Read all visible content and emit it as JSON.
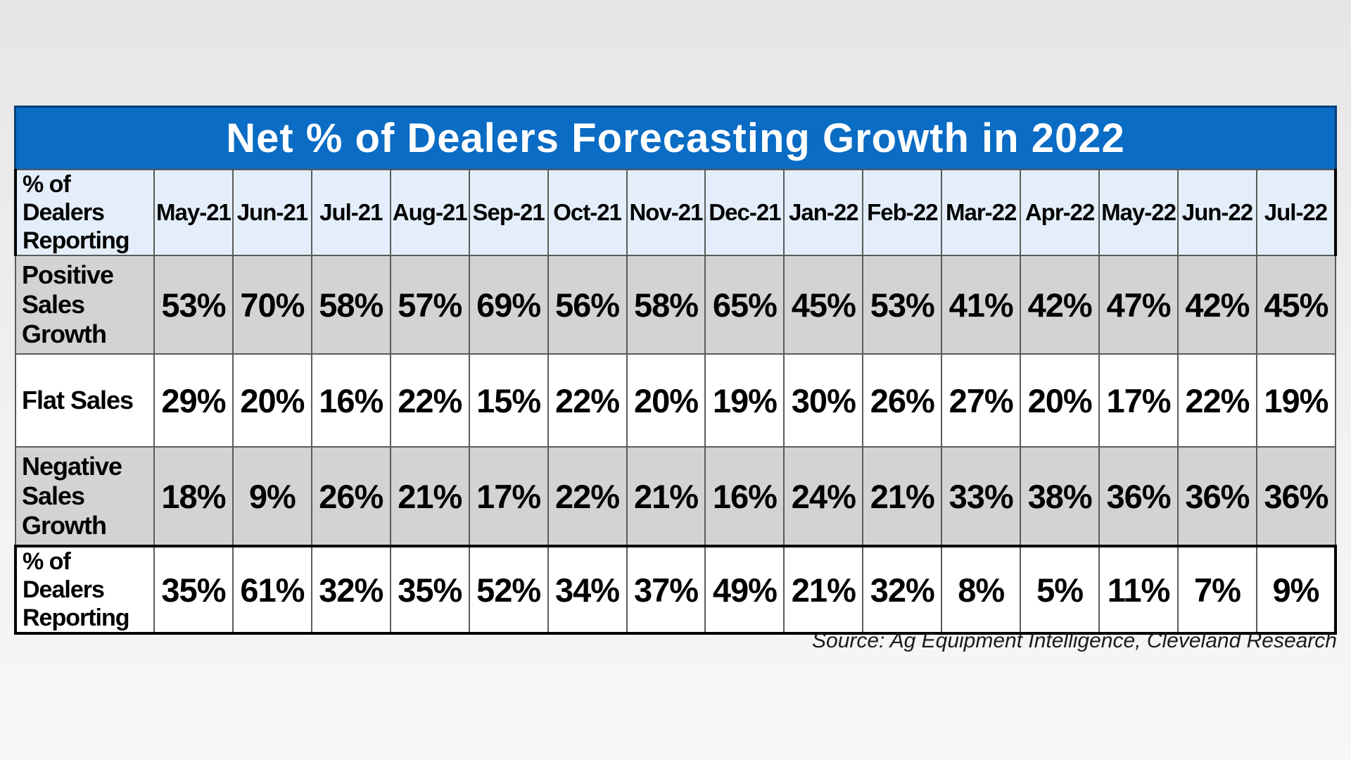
{
  "chart_data": {
    "type": "table",
    "title": "Net % of Dealers Forecasting Growth in 2022",
    "header_label": "% of Dealers Reporting",
    "columns": [
      "May-21",
      "Jun-21",
      "Jul-21",
      "Aug-21",
      "Sep-21",
      "Oct-21",
      "Nov-21",
      "Dec-21",
      "Jan-22",
      "Feb-22",
      "Mar-22",
      "Apr-22",
      "May-22",
      "Jun-22",
      "Jul-22"
    ],
    "rows": [
      {
        "label": "Positive Sales Growth",
        "style": "gray",
        "cls": "r-pos",
        "values": [
          "53%",
          "70%",
          "58%",
          "57%",
          "69%",
          "56%",
          "58%",
          "65%",
          "45%",
          "53%",
          "41%",
          "42%",
          "47%",
          "42%",
          "45%"
        ]
      },
      {
        "label": "Flat Sales",
        "style": "white",
        "cls": "r-flat",
        "values": [
          "29%",
          "20%",
          "16%",
          "22%",
          "15%",
          "22%",
          "20%",
          "19%",
          "30%",
          "26%",
          "27%",
          "20%",
          "17%",
          "22%",
          "19%"
        ]
      },
      {
        "label": "Negative Sales Growth",
        "style": "gray",
        "cls": "r-neg",
        "values": [
          "18%",
          "9%",
          "26%",
          "21%",
          "17%",
          "22%",
          "21%",
          "16%",
          "24%",
          "21%",
          "33%",
          "38%",
          "36%",
          "36%",
          "36%"
        ]
      },
      {
        "label": "% of Dealers Reporting",
        "style": "white",
        "cls": "r-net",
        "values": [
          "35%",
          "61%",
          "32%",
          "35%",
          "52%",
          "34%",
          "37%",
          "49%",
          "21%",
          "32%",
          "8%",
          "5%",
          "11%",
          "7%",
          "9%"
        ]
      }
    ],
    "source": "Source: Ag Equipment Intelligence, Cleveland Research"
  },
  "colors": {
    "title_bar": "#0a6cc4",
    "header_fill": "#e3eefa",
    "gray_row": "#d3d3d3",
    "white_row": "#ffffff"
  }
}
